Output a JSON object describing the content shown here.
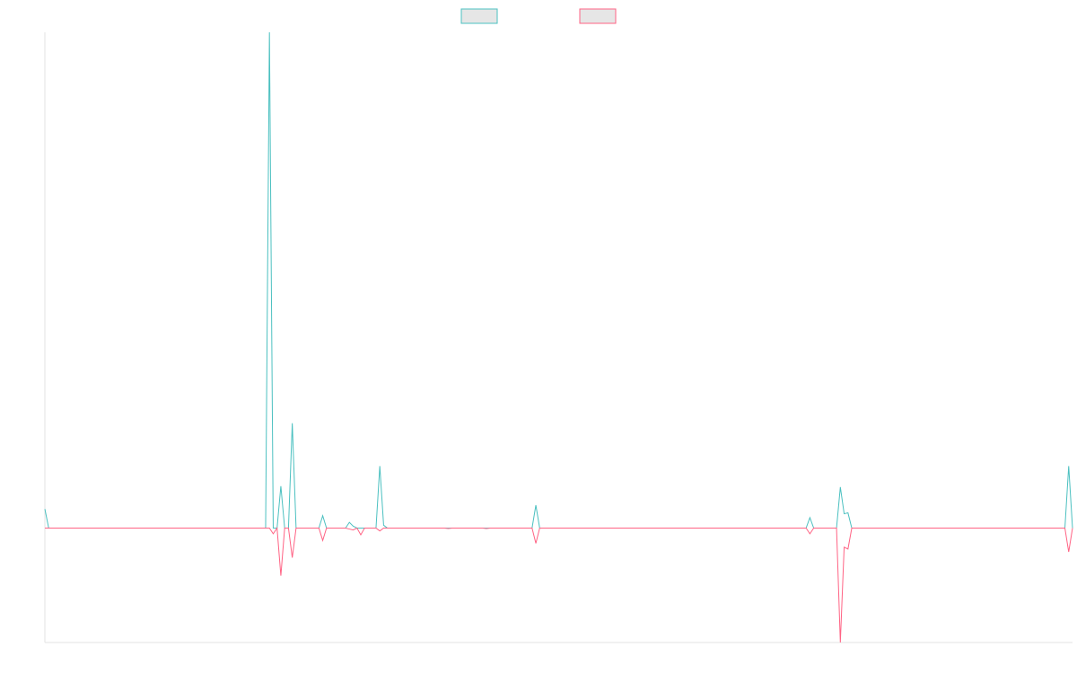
{
  "chart_data": {
    "type": "line",
    "title": "",
    "xlabel": "",
    "ylabel": "",
    "grid": false,
    "legend_position": "top-center",
    "x_count": 271,
    "ylim": [
      -12,
      52
    ],
    "series": [
      {
        "color": "#4bc0c0",
        "points": [
          [
            0,
            2
          ],
          [
            1,
            0
          ],
          [
            58,
            0
          ],
          [
            59,
            52
          ],
          [
            60,
            0
          ],
          [
            61,
            0
          ],
          [
            62,
            4.4
          ],
          [
            63,
            0
          ],
          [
            64,
            0
          ],
          [
            65,
            11
          ],
          [
            66,
            0
          ],
          [
            72,
            0
          ],
          [
            73,
            1.3
          ],
          [
            74,
            0
          ],
          [
            79,
            0
          ],
          [
            80,
            0.6
          ],
          [
            81,
            0.2
          ],
          [
            82,
            0
          ],
          [
            87,
            0
          ],
          [
            88,
            6.5
          ],
          [
            89,
            0.3
          ],
          [
            90,
            0
          ],
          [
            128,
            0
          ],
          [
            129,
            2.4
          ],
          [
            130,
            0
          ],
          [
            200,
            0
          ],
          [
            201,
            1.1
          ],
          [
            202,
            0
          ],
          [
            208,
            0
          ],
          [
            209,
            4.3
          ],
          [
            210,
            1.5
          ],
          [
            211,
            1.6
          ],
          [
            212,
            0
          ],
          [
            268,
            0
          ],
          [
            269,
            6.5
          ],
          [
            270,
            0
          ]
        ]
      },
      {
        "color": "#ff6384",
        "points": [
          [
            0,
            0
          ],
          [
            58,
            0
          ],
          [
            59,
            0
          ],
          [
            60,
            -0.6
          ],
          [
            61,
            0
          ],
          [
            62,
            -5
          ],
          [
            63,
            0
          ],
          [
            64,
            0
          ],
          [
            65,
            -3.1
          ],
          [
            66,
            0
          ],
          [
            72,
            0
          ],
          [
            73,
            -1.3
          ],
          [
            74,
            0
          ],
          [
            79,
            0
          ],
          [
            80,
            -0.1
          ],
          [
            81,
            -0.2
          ],
          [
            82,
            0
          ],
          [
            83,
            -0.7
          ],
          [
            84,
            0
          ],
          [
            85,
            0
          ],
          [
            87,
            0
          ],
          [
            88,
            -0.3
          ],
          [
            89,
            0
          ],
          [
            90,
            0
          ],
          [
            105,
            0
          ],
          [
            106,
            -0.05
          ],
          [
            107,
            0
          ],
          [
            115,
            0
          ],
          [
            116,
            -0.05
          ],
          [
            117,
            0
          ],
          [
            128,
            0
          ],
          [
            129,
            -1.6
          ],
          [
            130,
            0
          ],
          [
            200,
            0
          ],
          [
            201,
            -0.6
          ],
          [
            202,
            0
          ],
          [
            208,
            0
          ],
          [
            209,
            -12
          ],
          [
            210,
            -2
          ],
          [
            211,
            -2.2
          ],
          [
            212,
            0
          ],
          [
            268,
            0
          ],
          [
            269,
            -2.5
          ],
          [
            270,
            0
          ]
        ]
      }
    ]
  }
}
